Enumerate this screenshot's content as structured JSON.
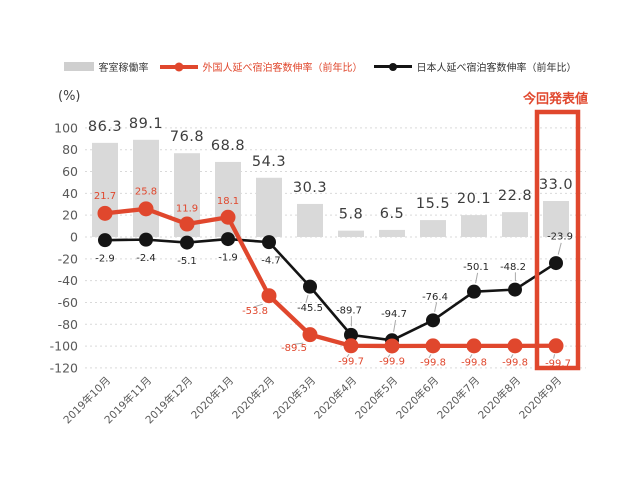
{
  "page": {
    "unit_label": "(%)"
  },
  "colors": {
    "bar": "#d9d9d9",
    "bar_legend": "#cfcfcf",
    "foreign_red": "#e0472d",
    "japanese_black": "#141414",
    "grid": "#d9d9d9",
    "axis_text": "#595959",
    "bar_label_text": "#3d3d3d",
    "leader": "#a9a9a9"
  },
  "legend": {
    "items": [
      {
        "id": "occupancy",
        "label": "客室稼働率",
        "swatch": "bar",
        "color": "#cfcfcf",
        "text_color": "#404040"
      },
      {
        "id": "foreign",
        "label": "外国人延べ宿泊客数伸率（前年比）",
        "swatch": "line-dot",
        "color": "#e0472d",
        "text_color": "#e0472d"
      },
      {
        "id": "japanese",
        "label": "日本人延べ宿泊客数伸率（前年比）",
        "swatch": "line-dot",
        "color": "#141414",
        "text_color": "#333333"
      }
    ]
  },
  "chart_data": {
    "type": "combo",
    "categories": [
      "2019年10月",
      "2019年11月",
      "2019年12月",
      "2020年1月",
      "2020年2月",
      "2020年3月",
      "2020年4月",
      "2020年5月",
      "2020年6月",
      "2020年7月",
      "2020年8月",
      "2020年9月"
    ],
    "series": [
      {
        "name": "客室稼働率",
        "type": "bar",
        "color": "#d9d9d9",
        "values": [
          86.3,
          89.1,
          76.8,
          68.8,
          54.3,
          30.3,
          5.8,
          6.5,
          15.5,
          20.1,
          22.8,
          33.0
        ]
      },
      {
        "name": "外国人延べ宿泊客数伸率（前年比）",
        "type": "line",
        "color": "#e0472d",
        "values": [
          21.7,
          25.8,
          11.9,
          18.1,
          -53.8,
          -89.5,
          -99.7,
          -99.9,
          -99.8,
          -99.8,
          -99.8,
          -99.7
        ]
      },
      {
        "name": "日本人延べ宿泊客数伸率（前年比）",
        "type": "line",
        "color": "#141414",
        "values": [
          -2.9,
          -2.4,
          -5.1,
          -1.9,
          -4.7,
          -45.5,
          -89.7,
          -94.7,
          -76.4,
          -50.1,
          -48.2,
          -23.9
        ]
      }
    ],
    "ylabel": "(%)",
    "ylim": [
      -120,
      100
    ],
    "ytick_step": 20,
    "grid": true,
    "legend_position": "top",
    "highlight": {
      "category": "2020年9月",
      "label": "今回発表値"
    }
  }
}
